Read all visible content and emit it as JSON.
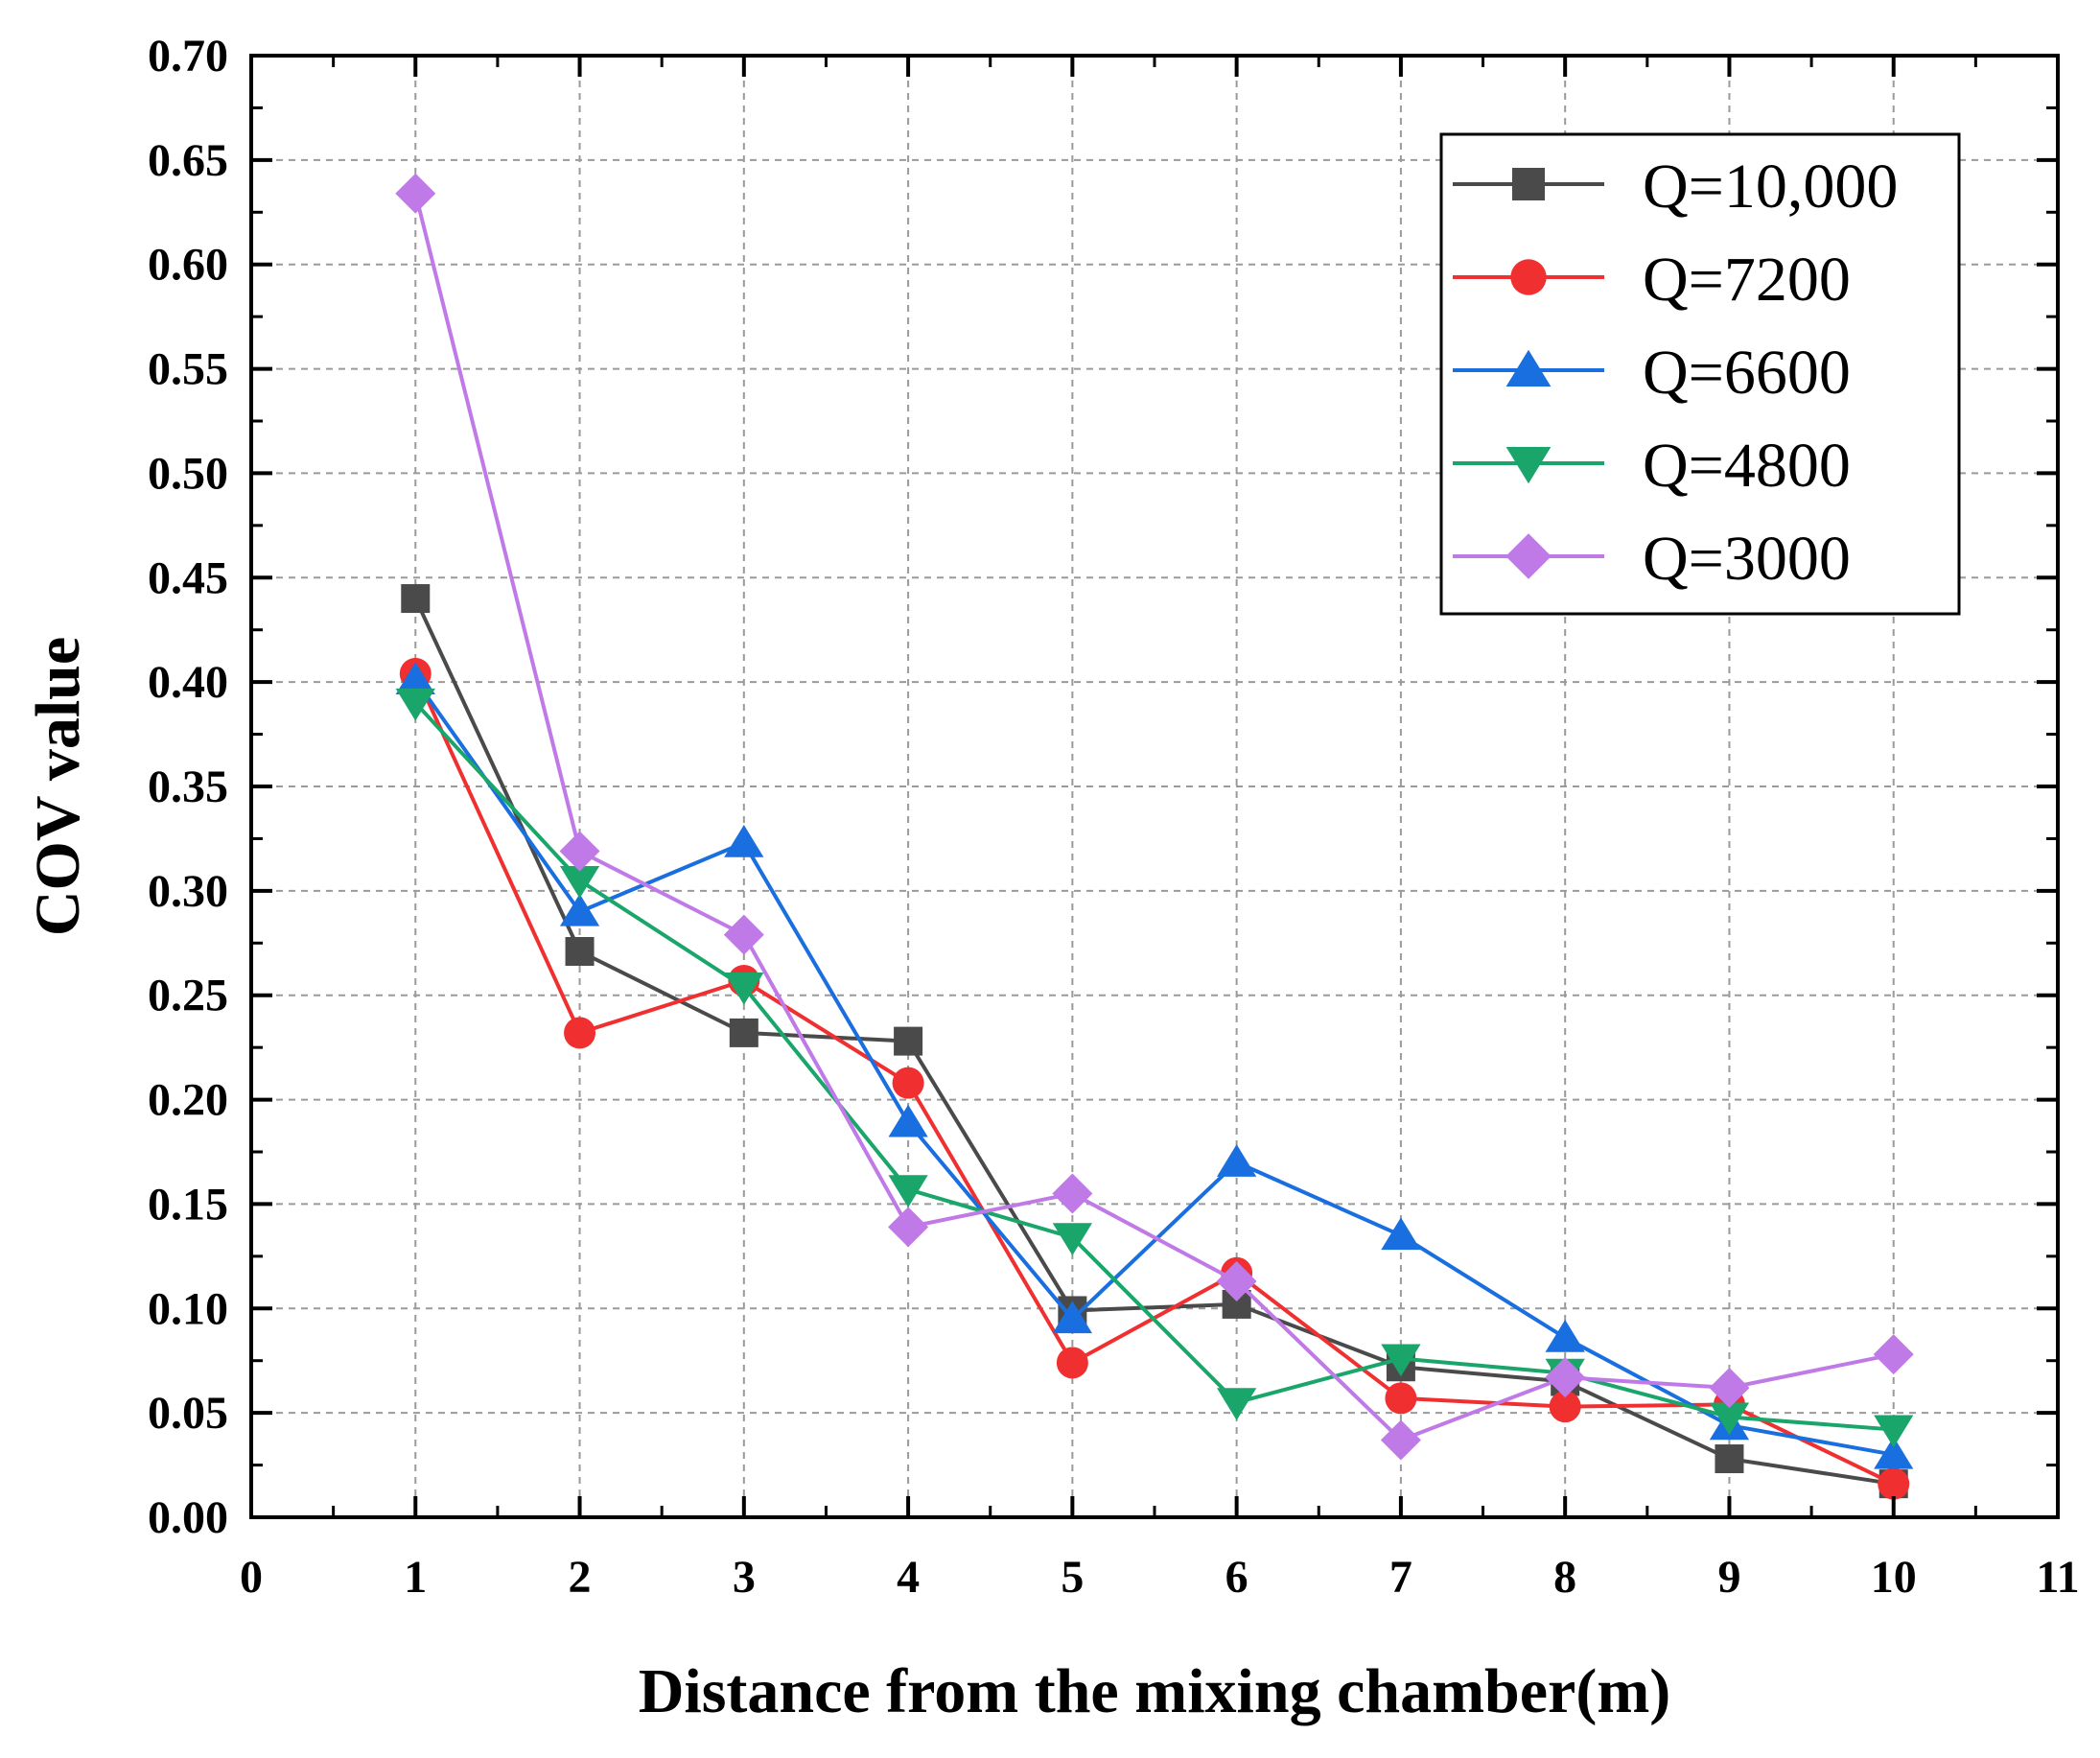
{
  "chart_data": {
    "type": "line",
    "title": "",
    "xlabel": "Distance from the mixing chamber(m)",
    "ylabel": "COV value",
    "xlim": [
      0,
      11
    ],
    "ylim": [
      0,
      0.7
    ],
    "x_ticks": [
      "0",
      "1",
      "2",
      "3",
      "4",
      "5",
      "6",
      "7",
      "8",
      "9",
      "10",
      "11"
    ],
    "y_ticks": [
      "0.00",
      "0.05",
      "0.10",
      "0.15",
      "0.20",
      "0.25",
      "0.30",
      "0.35",
      "0.40",
      "0.45",
      "0.50",
      "0.55",
      "0.60",
      "0.65",
      "0.70"
    ],
    "grid": true,
    "legend_position": "top-right",
    "x": [
      1,
      2,
      3,
      4,
      5,
      6,
      7,
      8,
      9,
      10
    ],
    "series": [
      {
        "name": "Q=10,000",
        "color": "#4a4a4a",
        "marker": "square",
        "values": [
          0.44,
          0.271,
          0.232,
          0.228,
          0.099,
          0.102,
          0.072,
          0.065,
          0.028,
          0.016
        ]
      },
      {
        "name": "Q=7200",
        "color": "#f03030",
        "marker": "circle",
        "values": [
          0.404,
          0.232,
          0.257,
          0.208,
          0.074,
          0.117,
          0.057,
          0.053,
          0.054,
          0.016
        ]
      },
      {
        "name": "Q=6600",
        "color": "#1a6fe0",
        "marker": "triangle-up",
        "values": [
          0.401,
          0.29,
          0.323,
          0.189,
          0.095,
          0.17,
          0.135,
          0.086,
          0.044,
          0.03
        ]
      },
      {
        "name": "Q=4800",
        "color": "#1aa66a",
        "marker": "triangle-down",
        "values": [
          0.39,
          0.305,
          0.254,
          0.157,
          0.134,
          0.055,
          0.076,
          0.069,
          0.048,
          0.042
        ]
      },
      {
        "name": "Q=3000",
        "color": "#c07ae8",
        "marker": "diamond",
        "values": [
          0.634,
          0.319,
          0.279,
          0.139,
          0.155,
          0.113,
          0.037,
          0.067,
          0.062,
          0.078
        ]
      }
    ]
  }
}
